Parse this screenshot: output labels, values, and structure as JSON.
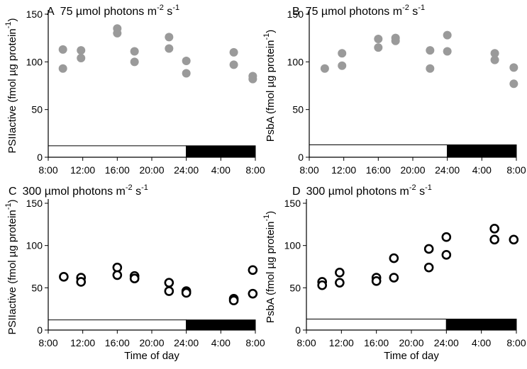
{
  "chart_data": [
    {
      "type": "scatter",
      "panel_letter": "A",
      "title_base": "75 µmol photons m",
      "title_exp1": "-2",
      "title_mid": " s",
      "title_exp2": "-1",
      "ylabel_base": "PSIIactive (fmol µg protein",
      "ylabel_exp": "-1",
      "ylabel_close": ")",
      "xlabel": "",
      "xticks": [
        "8:00",
        "12:00",
        "16:00",
        "20:00",
        "24:00",
        "4:00",
        "8:00"
      ],
      "xlim": [
        8,
        32
      ],
      "yticks": [
        "0",
        "50",
        "100",
        "150"
      ],
      "ylim": [
        0,
        150
      ],
      "marker": "filled",
      "color": "#9a9a9a",
      "light_period": [
        8,
        24
      ],
      "dark_period": [
        24,
        32
      ],
      "bar_level": 12,
      "points": [
        {
          "x": 9.7,
          "y": 113
        },
        {
          "x": 9.7,
          "y": 93
        },
        {
          "x": 11.8,
          "y": 112
        },
        {
          "x": 11.8,
          "y": 104
        },
        {
          "x": 16,
          "y": 135
        },
        {
          "x": 16,
          "y": 130
        },
        {
          "x": 18,
          "y": 111
        },
        {
          "x": 18,
          "y": 100
        },
        {
          "x": 22,
          "y": 126
        },
        {
          "x": 22,
          "y": 114
        },
        {
          "x": 24,
          "y": 101
        },
        {
          "x": 24,
          "y": 88
        },
        {
          "x": 29.5,
          "y": 110
        },
        {
          "x": 29.5,
          "y": 97
        },
        {
          "x": 31.7,
          "y": 85
        },
        {
          "x": 31.7,
          "y": 82
        }
      ]
    },
    {
      "type": "scatter",
      "panel_letter": "B",
      "title_base": "75 µmol photons m",
      "title_exp1": "-2",
      "title_mid": " s",
      "title_exp2": "-1",
      "ylabel_base": "PsbA (fmol µg protein",
      "ylabel_exp": "-1",
      "ylabel_close": ")",
      "xlabel": "",
      "xticks": [
        "8:00",
        "12:00",
        "16:00",
        "20:00",
        "24:00",
        "4:00",
        "8:00"
      ],
      "xlim": [
        8,
        32
      ],
      "yticks": [
        "0",
        "50",
        "100",
        "150"
      ],
      "ylim": [
        0,
        150
      ],
      "marker": "filled",
      "color": "#9a9a9a",
      "light_period": [
        8,
        24
      ],
      "dark_period": [
        24,
        32
      ],
      "bar_level": 13,
      "points": [
        {
          "x": 9.8,
          "y": 93
        },
        {
          "x": 11.8,
          "y": 109
        },
        {
          "x": 11.8,
          "y": 96
        },
        {
          "x": 16,
          "y": 124
        },
        {
          "x": 16,
          "y": 115
        },
        {
          "x": 18,
          "y": 125
        },
        {
          "x": 18,
          "y": 122
        },
        {
          "x": 22,
          "y": 112
        },
        {
          "x": 22,
          "y": 93
        },
        {
          "x": 24,
          "y": 128
        },
        {
          "x": 24,
          "y": 111
        },
        {
          "x": 29.5,
          "y": 109
        },
        {
          "x": 29.5,
          "y": 102
        },
        {
          "x": 31.7,
          "y": 94
        },
        {
          "x": 31.7,
          "y": 77
        }
      ]
    },
    {
      "type": "scatter",
      "panel_letter": "C",
      "title_base": "300 µmol photons m",
      "title_exp1": "-2",
      "title_mid": " s",
      "title_exp2": "-1",
      "ylabel_base": "PSIIactive (fmol µg protein",
      "ylabel_exp": "-1",
      "ylabel_close": ")",
      "xlabel": "Time of day",
      "xticks": [
        "8:00",
        "12:00",
        "16:00",
        "20:00",
        "24:00",
        "4:00",
        "8:00"
      ],
      "xlim": [
        8,
        32
      ],
      "yticks": [
        "0",
        "50",
        "100",
        "150"
      ],
      "ylim": [
        0,
        150
      ],
      "marker": "open",
      "color": "#000000",
      "light_period": [
        8,
        24
      ],
      "dark_period": [
        24,
        32
      ],
      "bar_level": 12,
      "points": [
        {
          "x": 9.8,
          "y": 63
        },
        {
          "x": 11.8,
          "y": 62
        },
        {
          "x": 11.8,
          "y": 57
        },
        {
          "x": 16,
          "y": 74
        },
        {
          "x": 16,
          "y": 65
        },
        {
          "x": 18,
          "y": 64
        },
        {
          "x": 18,
          "y": 61
        },
        {
          "x": 22,
          "y": 56
        },
        {
          "x": 22,
          "y": 46
        },
        {
          "x": 24,
          "y": 46
        },
        {
          "x": 24,
          "y": 44
        },
        {
          "x": 29.5,
          "y": 37
        },
        {
          "x": 29.5,
          "y": 35
        },
        {
          "x": 31.7,
          "y": 71
        },
        {
          "x": 31.7,
          "y": 43
        }
      ]
    },
    {
      "type": "scatter",
      "panel_letter": "D",
      "title_base": "300 µmol photons m",
      "title_exp1": "-2",
      "title_mid": " s",
      "title_exp2": "-1",
      "ylabel_base": "PsbA (fmol µg protein",
      "ylabel_exp": "-1",
      "ylabel_close": ")",
      "xlabel": "Time of day",
      "xticks": [
        "8:00",
        "12:00",
        "16:00",
        "20:00",
        "24:00",
        "4:00",
        "8:00"
      ],
      "xlim": [
        8,
        32
      ],
      "yticks": [
        "0",
        "50",
        "100",
        "150"
      ],
      "ylim": [
        0,
        150
      ],
      "marker": "open",
      "color": "#000000",
      "light_period": [
        8,
        24
      ],
      "dark_period": [
        24,
        32
      ],
      "bar_level": 13,
      "points": [
        {
          "x": 9.8,
          "y": 57
        },
        {
          "x": 9.8,
          "y": 53
        },
        {
          "x": 11.8,
          "y": 68
        },
        {
          "x": 11.8,
          "y": 56
        },
        {
          "x": 16,
          "y": 62
        },
        {
          "x": 16,
          "y": 58
        },
        {
          "x": 18,
          "y": 85
        },
        {
          "x": 18,
          "y": 62
        },
        {
          "x": 22,
          "y": 96
        },
        {
          "x": 22,
          "y": 74
        },
        {
          "x": 24,
          "y": 110
        },
        {
          "x": 24,
          "y": 89
        },
        {
          "x": 29.5,
          "y": 120
        },
        {
          "x": 29.5,
          "y": 107
        },
        {
          "x": 31.7,
          "y": 107
        }
      ]
    }
  ]
}
